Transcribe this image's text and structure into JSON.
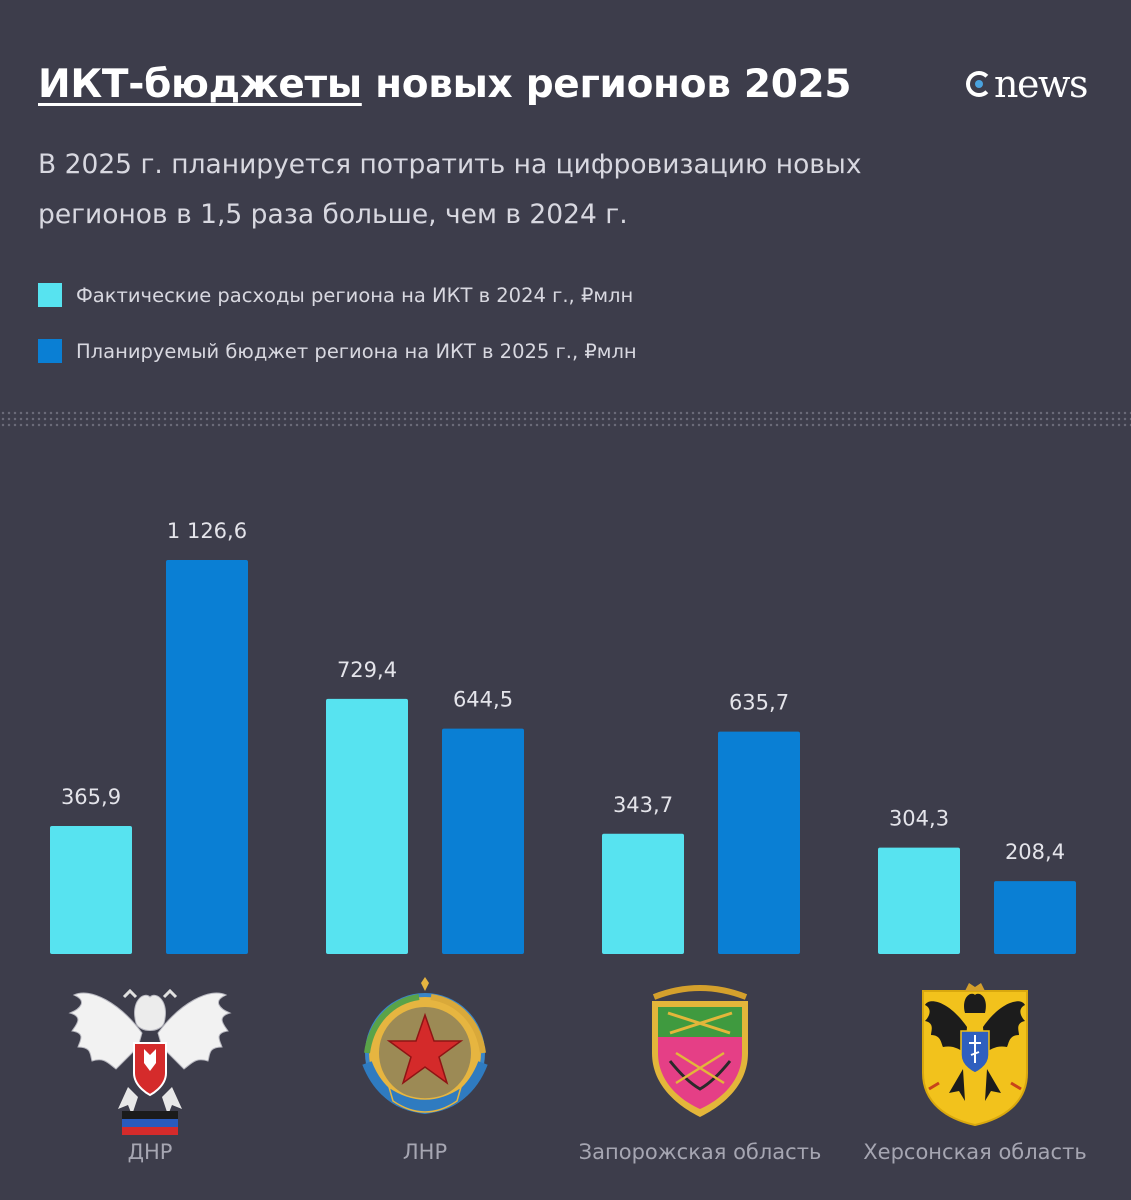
{
  "header": {
    "title_underlined": "ИКТ-бюджеты",
    "title_rest": " новых регионов 2025",
    "subtitle": "В 2025 г. планируется потратить на цифровизацию новых регионов в 1,5 раза больше, чем в 2024 г.",
    "logo_text": "news"
  },
  "colors": {
    "actual_2024": "#57e3f0",
    "budget_2025": "#0a7fd4",
    "background": "#3d3d4b"
  },
  "chart_data": {
    "type": "bar",
    "categories": [
      "ДНР",
      "ЛНР",
      "Запорожская область",
      "Херсонская область"
    ],
    "series": [
      {
        "name": "Фактические расходы региона на ИКТ в 2024 г., ₽млн",
        "values": [
          365.9,
          729.4,
          343.7,
          304.3
        ],
        "labels": [
          "365,9",
          "729,4",
          "343,7",
          "304,3"
        ]
      },
      {
        "name": "Планируемый бюджет региона на ИКТ в 2025 г., ₽млн",
        "values": [
          1126.6,
          644.5,
          635.7,
          208.4
        ],
        "labels": [
          "1 126,6",
          "644,5",
          "635,7",
          "208,4"
        ]
      }
    ],
    "ylim": [
      0,
      1126.6
    ],
    "grid": false,
    "legend_position": "top-left"
  }
}
